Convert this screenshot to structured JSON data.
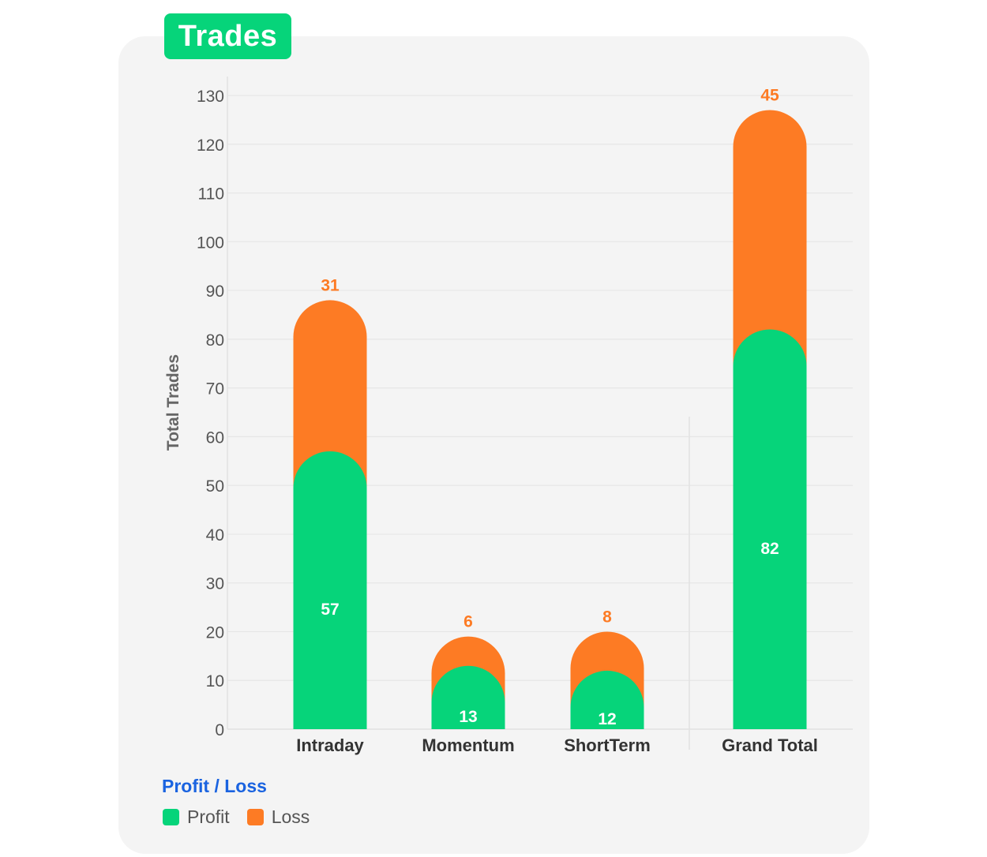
{
  "title": "Trades",
  "colors": {
    "profit": "#06d47a",
    "loss": "#fd7b24",
    "card_bg": "#f4f4f4",
    "legend_title": "#1a63e0"
  },
  "legend": {
    "title": "Profit / Loss",
    "items": [
      {
        "label": "Profit",
        "color": "#06d47a"
      },
      {
        "label": "Loss",
        "color": "#fd7b24"
      }
    ]
  },
  "chart_data": {
    "type": "bar",
    "stacked": true,
    "title": "Trades",
    "ylabel": "Total Trades",
    "xlabel": "",
    "ylim": [
      0,
      130
    ],
    "yticks": [
      0,
      10,
      20,
      30,
      40,
      50,
      60,
      70,
      80,
      90,
      100,
      110,
      120,
      130
    ],
    "categories": [
      "Intraday",
      "Momentum",
      "ShortTerm",
      "Grand Total"
    ],
    "series": [
      {
        "name": "Profit",
        "values": [
          57,
          13,
          12,
          82
        ]
      },
      {
        "name": "Loss",
        "values": [
          31,
          6,
          8,
          45
        ]
      }
    ],
    "grid": "horizontal",
    "legend_position": "bottom-left"
  }
}
